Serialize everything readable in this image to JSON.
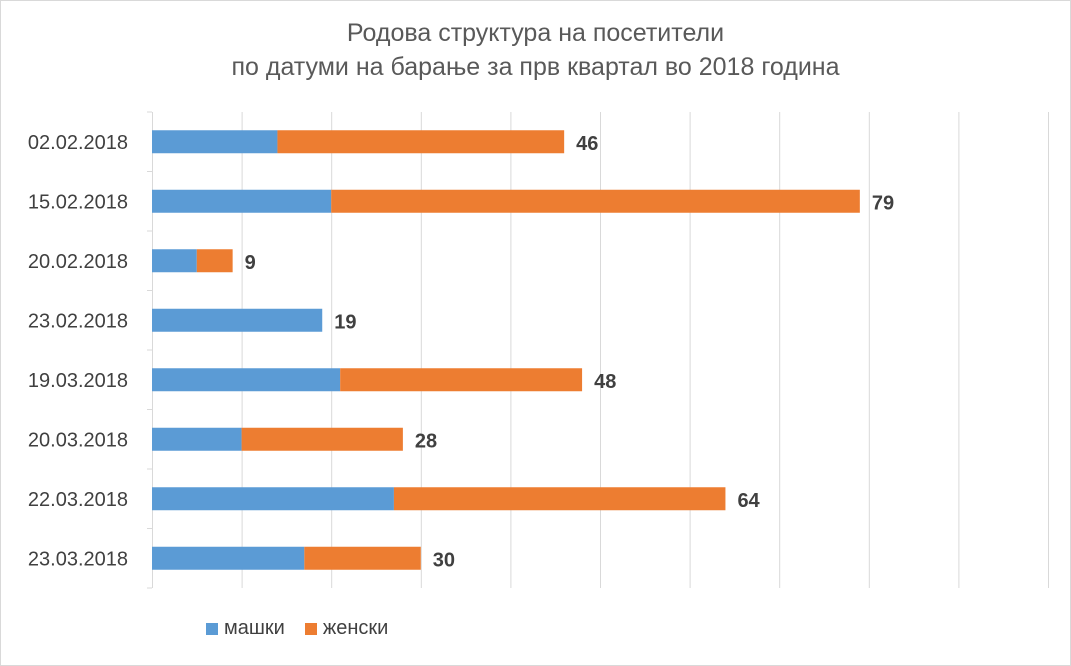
{
  "chart_data": {
    "type": "bar",
    "orientation": "horizontal",
    "stacked": true,
    "title": [
      "Родова структура  на посетители",
      "по датуми на барање за прв квартал во 2018 година"
    ],
    "categories": [
      "02.02.2018",
      "15.02.2018",
      "20.02.2018",
      "23.02.2018",
      "19.03.2018",
      "20.03.2018",
      "22.03.2018",
      "23.03.2018"
    ],
    "series": [
      {
        "name": "машки",
        "color": "#5b9bd5",
        "values": [
          14,
          20,
          5,
          19,
          21,
          10,
          27,
          17
        ]
      },
      {
        "name": "женски",
        "color": "#ed7d31",
        "values": [
          32,
          59,
          4,
          0,
          27,
          18,
          37,
          13
        ]
      }
    ],
    "totals": [
      "46",
      "79",
      "9",
      "19",
      "48",
      "28",
      "64",
      "30"
    ],
    "xlim": [
      0,
      100
    ],
    "grid": true,
    "legend_position": "bottom-left"
  }
}
